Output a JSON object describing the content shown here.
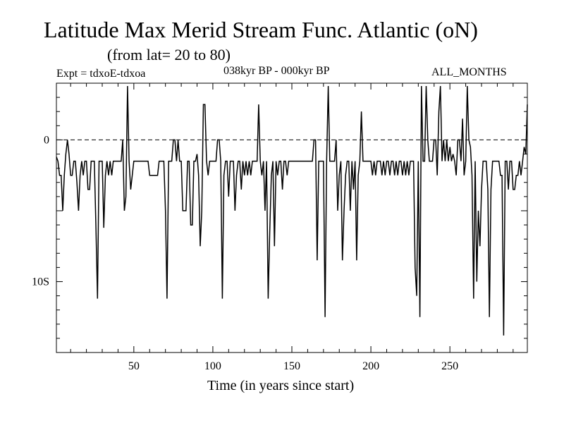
{
  "header": {
    "title": "Latitude Max Merid Stream Func. Atlantic (oN)",
    "subtitle": "(from lat= 20 to 80)",
    "experiment": "Expt = tdxoE-tdxoa",
    "period": "038kyr BP - 000kyr BP",
    "months": "ALL_MONTHS"
  },
  "chart_data": {
    "type": "line",
    "title": "Latitude Max Merid Stream Func. Atlantic (oN)",
    "subtitle": "(from lat= 20 to 80)",
    "xlabel": "Time (in years since start)",
    "ylabel": "",
    "xlim": [
      1,
      299
    ],
    "ylim": [
      -15,
      4
    ],
    "x_ticks": [
      50,
      100,
      150,
      200,
      250
    ],
    "y_ticks": [
      {
        "value": 0,
        "label": "0"
      },
      {
        "value": -10,
        "label": "10S"
      }
    ],
    "zero_line": "dashed",
    "grid": false,
    "series": [
      {
        "name": "",
        "color": "#000000",
        "points": [
          [
            1,
            -1.2
          ],
          [
            2,
            -1.5
          ],
          [
            3,
            -2.5
          ],
          [
            4,
            -2.5
          ],
          [
            5,
            -5
          ],
          [
            6,
            -2.5
          ],
          [
            7,
            -1
          ],
          [
            8,
            0
          ],
          [
            9,
            -1
          ],
          [
            10,
            -2.5
          ],
          [
            11,
            -2.5
          ],
          [
            12,
            -1.5
          ],
          [
            13,
            -1.5
          ],
          [
            14,
            -3
          ],
          [
            15,
            -5
          ],
          [
            16,
            -2.5
          ],
          [
            17,
            -1.5
          ],
          [
            18,
            -2.5
          ],
          [
            19,
            -1.5
          ],
          [
            20,
            -1.5
          ],
          [
            21,
            -3.5
          ],
          [
            22,
            -3.5
          ],
          [
            23,
            -1.5
          ],
          [
            24,
            -1.5
          ],
          [
            25,
            -1.5
          ],
          [
            26,
            -6
          ],
          [
            27,
            -11.2
          ],
          [
            28,
            -1.5
          ],
          [
            29,
            -1.5
          ],
          [
            30,
            -1.5
          ],
          [
            31,
            -6.2
          ],
          [
            32,
            -2.5
          ],
          [
            33,
            -1.5
          ],
          [
            34,
            -2.5
          ],
          [
            35,
            -1.5
          ],
          [
            36,
            -2.5
          ],
          [
            37,
            -1.5
          ],
          [
            38,
            -1.5
          ],
          [
            39,
            -1.5
          ],
          [
            40,
            -1.5
          ],
          [
            41,
            -1.5
          ],
          [
            42,
            -1.5
          ],
          [
            43,
            0
          ],
          [
            44,
            -5
          ],
          [
            45,
            -4
          ],
          [
            46,
            3.8
          ],
          [
            47,
            -1.5
          ],
          [
            48,
            -3.5
          ],
          [
            49,
            -2.5
          ],
          [
            50,
            -1.5
          ],
          [
            51,
            -1.5
          ],
          [
            52,
            -1.5
          ],
          [
            53,
            -1.5
          ],
          [
            54,
            -1.5
          ],
          [
            55,
            -1.5
          ],
          [
            56,
            -1.5
          ],
          [
            57,
            -1.5
          ],
          [
            58,
            -1.5
          ],
          [
            59,
            -1.5
          ],
          [
            60,
            -2.5
          ],
          [
            61,
            -2.5
          ],
          [
            62,
            -2.5
          ],
          [
            63,
            -2.5
          ],
          [
            64,
            -2.5
          ],
          [
            65,
            -2.5
          ],
          [
            66,
            -1.5
          ],
          [
            67,
            -1.5
          ],
          [
            68,
            -1.5
          ],
          [
            69,
            -1.5
          ],
          [
            70,
            -5
          ],
          [
            71,
            -11.2
          ],
          [
            72,
            -1.5
          ],
          [
            73,
            -1.5
          ],
          [
            74,
            -1.5
          ],
          [
            75,
            0
          ],
          [
            76,
            0
          ],
          [
            77,
            -1.5
          ],
          [
            78,
            0
          ],
          [
            79,
            -1.5
          ],
          [
            80,
            -1.5
          ],
          [
            81,
            -5
          ],
          [
            82,
            -5
          ],
          [
            83,
            -5
          ],
          [
            84,
            -1.5
          ],
          [
            85,
            -1.5
          ],
          [
            86,
            -6
          ],
          [
            87,
            -6
          ],
          [
            88,
            -1.5
          ],
          [
            89,
            -1.5
          ],
          [
            90,
            -1
          ],
          [
            91,
            -2.5
          ],
          [
            92,
            -7.5
          ],
          [
            93,
            -5
          ],
          [
            94,
            2.5
          ],
          [
            95,
            2.5
          ],
          [
            96,
            -1.5
          ],
          [
            97,
            -2.5
          ],
          [
            98,
            -1.5
          ],
          [
            99,
            -1.5
          ],
          [
            100,
            -1.5
          ],
          [
            101,
            -1.5
          ],
          [
            102,
            -1.5
          ],
          [
            103,
            0
          ],
          [
            104,
            0
          ],
          [
            105,
            -1.5
          ],
          [
            106,
            -11.2
          ],
          [
            107,
            -2.5
          ],
          [
            108,
            -1.5
          ],
          [
            109,
            -1.5
          ],
          [
            110,
            -4
          ],
          [
            111,
            -1.5
          ],
          [
            112,
            -1.5
          ],
          [
            113,
            -1.5
          ],
          [
            114,
            -5
          ],
          [
            115,
            -2.5
          ],
          [
            116,
            -1.5
          ],
          [
            117,
            -1.5
          ],
          [
            118,
            -3.5
          ],
          [
            119,
            -1.5
          ],
          [
            120,
            -2.5
          ],
          [
            121,
            -1.5
          ],
          [
            122,
            -2.5
          ],
          [
            123,
            -1.5
          ],
          [
            124,
            -2.5
          ],
          [
            125,
            -1.5
          ],
          [
            126,
            -1.5
          ],
          [
            127,
            -1.5
          ],
          [
            128,
            -1.5
          ],
          [
            129,
            2.5
          ],
          [
            130,
            -1.5
          ],
          [
            131,
            -2.5
          ],
          [
            132,
            -1.5
          ],
          [
            133,
            -5
          ],
          [
            134,
            -1.5
          ],
          [
            135,
            -11.2
          ],
          [
            136,
            -6.5
          ],
          [
            137,
            -2.5
          ],
          [
            138,
            -1.5
          ],
          [
            139,
            -7.5
          ],
          [
            140,
            -1.5
          ],
          [
            141,
            -2.5
          ],
          [
            142,
            -1.5
          ],
          [
            143,
            -1.5
          ],
          [
            144,
            -3.5
          ],
          [
            145,
            -1.5
          ],
          [
            146,
            -1.5
          ],
          [
            147,
            -2.5
          ],
          [
            148,
            -1.5
          ],
          [
            149,
            -1.5
          ],
          [
            150,
            -1.5
          ],
          [
            151,
            -1.5
          ],
          [
            152,
            -1.5
          ],
          [
            153,
            -1.5
          ],
          [
            154,
            -1.5
          ],
          [
            155,
            -1.5
          ],
          [
            156,
            -1.5
          ],
          [
            157,
            -1.5
          ],
          [
            158,
            -1.5
          ],
          [
            159,
            -1.5
          ],
          [
            160,
            -1.5
          ],
          [
            161,
            -1.5
          ],
          [
            162,
            -1.5
          ],
          [
            163,
            -1.5
          ],
          [
            164,
            0
          ],
          [
            165,
            0
          ],
          [
            166,
            -8.5
          ],
          [
            167,
            -1.5
          ],
          [
            168,
            -1.5
          ],
          [
            169,
            -1.5
          ],
          [
            170,
            -1.5
          ],
          [
            171,
            -12.5
          ],
          [
            172,
            -1.5
          ],
          [
            173,
            3.8
          ],
          [
            174,
            -1.5
          ],
          [
            175,
            -1.5
          ],
          [
            176,
            -1.5
          ],
          [
            177,
            -1.5
          ],
          [
            178,
            0
          ],
          [
            179,
            -5
          ],
          [
            180,
            -2.5
          ],
          [
            181,
            -1.5
          ],
          [
            182,
            -8.5
          ],
          [
            183,
            -5
          ],
          [
            184,
            -2.5
          ],
          [
            185,
            -1.5
          ],
          [
            186,
            -1.5
          ],
          [
            187,
            -5
          ],
          [
            188,
            -1.5
          ],
          [
            189,
            -3.5
          ],
          [
            190,
            -1.5
          ],
          [
            191,
            -8.5
          ],
          [
            192,
            -2.5
          ],
          [
            193,
            -1.5
          ],
          [
            194,
            2
          ],
          [
            195,
            -1.5
          ],
          [
            196,
            -1.5
          ],
          [
            197,
            -1.5
          ],
          [
            198,
            -1.5
          ],
          [
            199,
            -1.5
          ],
          [
            200,
            -1.5
          ],
          [
            201,
            -2.5
          ],
          [
            202,
            -1.5
          ],
          [
            203,
            -2.5
          ],
          [
            204,
            -1.5
          ],
          [
            205,
            -1.5
          ],
          [
            206,
            -1.5
          ],
          [
            207,
            -2.5
          ],
          [
            208,
            -1.5
          ],
          [
            209,
            -2.5
          ],
          [
            210,
            -1.5
          ],
          [
            211,
            -1.5
          ],
          [
            212,
            -2.5
          ],
          [
            213,
            -1.5
          ],
          [
            214,
            -1.5
          ],
          [
            215,
            -2.5
          ],
          [
            216,
            -1.5
          ],
          [
            217,
            -2.5
          ],
          [
            218,
            -1.5
          ],
          [
            219,
            -1.5
          ],
          [
            220,
            -2.5
          ],
          [
            221,
            -1.5
          ],
          [
            222,
            -2.5
          ],
          [
            223,
            -1.5
          ],
          [
            224,
            -2.5
          ],
          [
            225,
            -1.5
          ],
          [
            226,
            -1.5
          ],
          [
            227,
            -1.5
          ],
          [
            228,
            -9
          ],
          [
            229,
            -11
          ],
          [
            230,
            -1.5
          ],
          [
            231,
            -12.5
          ],
          [
            232,
            3.8
          ],
          [
            233,
            -1.5
          ],
          [
            234,
            -1.5
          ],
          [
            235,
            3.8
          ],
          [
            236,
            0
          ],
          [
            237,
            -1.5
          ],
          [
            238,
            -1.5
          ],
          [
            239,
            -1.5
          ],
          [
            240,
            0
          ],
          [
            241,
            0
          ],
          [
            242,
            -2.5
          ],
          [
            243,
            2
          ],
          [
            244,
            3.8
          ],
          [
            245,
            -1.5
          ],
          [
            246,
            0
          ],
          [
            247,
            -1.5
          ],
          [
            248,
            0
          ],
          [
            249,
            -1.5
          ],
          [
            250,
            -0.5
          ],
          [
            251,
            -1.5
          ],
          [
            252,
            -1
          ],
          [
            253,
            -1.5
          ],
          [
            254,
            -2.5
          ],
          [
            255,
            0
          ],
          [
            256,
            0
          ],
          [
            257,
            -1.5
          ],
          [
            258,
            1.5
          ],
          [
            259,
            -2.5
          ],
          [
            260,
            -1.5
          ],
          [
            261,
            3.8
          ],
          [
            262,
            0
          ],
          [
            263,
            -0.5
          ],
          [
            264,
            -2.5
          ],
          [
            265,
            -11.2
          ],
          [
            266,
            -1.5
          ],
          [
            267,
            -10
          ],
          [
            268,
            -5
          ],
          [
            269,
            -7.5
          ],
          [
            270,
            -3.5
          ],
          [
            271,
            -1.5
          ],
          [
            272,
            -1.5
          ],
          [
            273,
            -1.5
          ],
          [
            274,
            -3.5
          ],
          [
            275,
            -12.5
          ],
          [
            276,
            -3.5
          ],
          [
            277,
            -1.5
          ],
          [
            278,
            -1.5
          ],
          [
            279,
            -1.5
          ],
          [
            280,
            -1.5
          ],
          [
            281,
            -1.5
          ],
          [
            282,
            -2.5
          ],
          [
            283,
            -2.5
          ],
          [
            284,
            -13.8
          ],
          [
            285,
            -1.5
          ],
          [
            286,
            -1.5
          ],
          [
            287,
            -3.5
          ],
          [
            288,
            -1.5
          ],
          [
            289,
            -1.5
          ],
          [
            290,
            -3.5
          ],
          [
            291,
            -3.5
          ],
          [
            292,
            -2.5
          ],
          [
            293,
            -2.5
          ],
          [
            294,
            -1.5
          ],
          [
            295,
            -2.5
          ],
          [
            296,
            -1.5
          ],
          [
            297,
            -0.5
          ],
          [
            298,
            -1
          ],
          [
            299,
            2.5
          ]
        ]
      }
    ]
  }
}
